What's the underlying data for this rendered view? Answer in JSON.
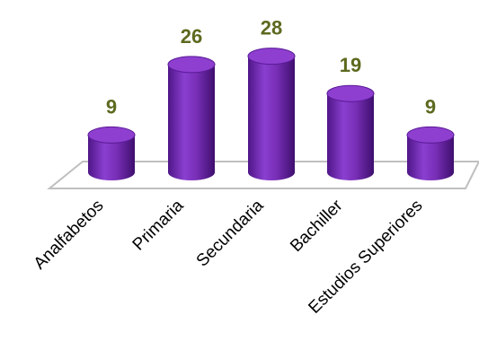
{
  "chart_data": {
    "type": "bar",
    "style": "3d-cylinder",
    "categories": [
      "Analfabetos",
      "Primaria",
      "Secundaria",
      "Bachiller",
      "Estudios Superiores"
    ],
    "values": [
      9,
      26,
      28,
      19,
      9
    ],
    "ylim": [
      0,
      30
    ],
    "grid": false,
    "legend": "none",
    "colors": {
      "bar": "#7a2fb8",
      "bar_dark": "#4a1580",
      "bar_top": "#8e3fd0",
      "value_label": "#5c6a1f",
      "floor_stroke": "#bfbfbf"
    }
  }
}
